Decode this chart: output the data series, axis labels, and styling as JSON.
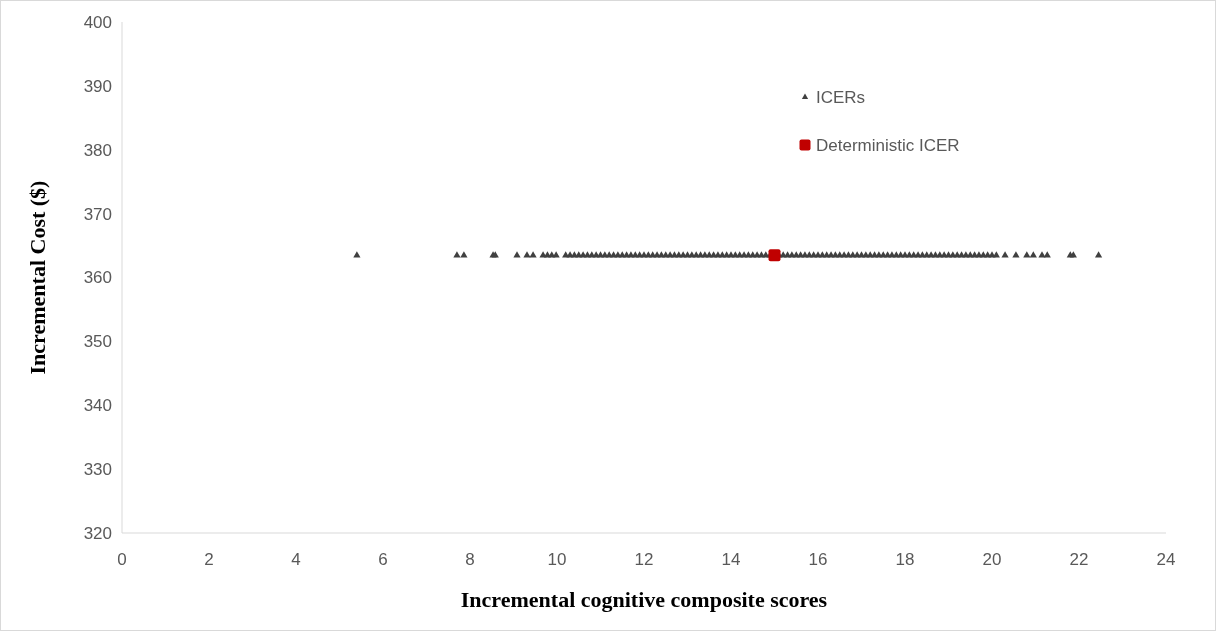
{
  "chart_data": {
    "type": "scatter",
    "xlabel": "Incremental cognitive composite scores",
    "ylabel": "Incremental Cost ($)",
    "xlim": [
      0,
      24
    ],
    "xticks": [
      0,
      2,
      4,
      6,
      8,
      10,
      12,
      14,
      16,
      18,
      20,
      22,
      24
    ],
    "ylim": [
      320,
      400
    ],
    "yticks": [
      320,
      330,
      340,
      350,
      360,
      370,
      380,
      390,
      400
    ],
    "legend": "top right",
    "grid": false,
    "series": [
      {
        "name": "ICERs",
        "color": "#404040",
        "marker": "triangle",
        "x": [
          5.4,
          7.7,
          7.86,
          8.53,
          8.58,
          9.08,
          9.31,
          9.45,
          9.68,
          9.78,
          9.88,
          9.98,
          10.2,
          10.3,
          10.4,
          10.5,
          10.6,
          10.7,
          10.8,
          10.9,
          11.0,
          11.1,
          11.2,
          11.3,
          11.4,
          11.5,
          11.6,
          11.7,
          11.8,
          11.9,
          12.0,
          12.1,
          12.2,
          12.3,
          12.4,
          12.5,
          12.6,
          12.7,
          12.8,
          12.9,
          13.0,
          13.1,
          13.2,
          13.3,
          13.4,
          13.5,
          13.6,
          13.7,
          13.8,
          13.9,
          14.0,
          14.1,
          14.2,
          14.3,
          14.4,
          14.5,
          14.6,
          14.7,
          14.8,
          14.9,
          15.1,
          15.2,
          15.3,
          15.4,
          15.5,
          15.6,
          15.7,
          15.8,
          15.9,
          16.0,
          16.1,
          16.2,
          16.3,
          16.4,
          16.5,
          16.6,
          16.7,
          16.8,
          16.9,
          17.0,
          17.1,
          17.2,
          17.3,
          17.4,
          17.5,
          17.6,
          17.7,
          17.8,
          17.9,
          18.0,
          18.1,
          18.2,
          18.3,
          18.4,
          18.5,
          18.6,
          18.7,
          18.8,
          18.9,
          19.0,
          19.1,
          19.2,
          19.3,
          19.4,
          19.5,
          19.6,
          19.7,
          19.8,
          19.9,
          20.0,
          20.1,
          20.3,
          20.55,
          20.8,
          20.95,
          21.15,
          21.27,
          21.8,
          21.87,
          22.45
        ],
        "values": [
          363.5,
          363.5,
          363.5,
          363.5,
          363.5,
          363.5,
          363.5,
          363.5,
          363.5,
          363.5,
          363.5,
          363.5,
          363.5,
          363.5,
          363.5,
          363.5,
          363.5,
          363.5,
          363.5,
          363.5,
          363.5,
          363.5,
          363.5,
          363.5,
          363.5,
          363.5,
          363.5,
          363.5,
          363.5,
          363.5,
          363.5,
          363.5,
          363.5,
          363.5,
          363.5,
          363.5,
          363.5,
          363.5,
          363.5,
          363.5,
          363.5,
          363.5,
          363.5,
          363.5,
          363.5,
          363.5,
          363.5,
          363.5,
          363.5,
          363.5,
          363.5,
          363.5,
          363.5,
          363.5,
          363.5,
          363.5,
          363.5,
          363.5,
          363.5,
          363.5,
          363.5,
          363.5,
          363.5,
          363.5,
          363.5,
          363.5,
          363.5,
          363.5,
          363.5,
          363.5,
          363.5,
          363.5,
          363.5,
          363.5,
          363.5,
          363.5,
          363.5,
          363.5,
          363.5,
          363.5,
          363.5,
          363.5,
          363.5,
          363.5,
          363.5,
          363.5,
          363.5,
          363.5,
          363.5,
          363.5,
          363.5,
          363.5,
          363.5,
          363.5,
          363.5,
          363.5,
          363.5,
          363.5,
          363.5,
          363.5,
          363.5,
          363.5,
          363.5,
          363.5,
          363.5,
          363.5,
          363.5,
          363.5,
          363.5,
          363.5,
          363.5,
          363.5,
          363.5,
          363.5,
          363.5,
          363.5,
          363.5,
          363.5,
          363.5,
          363.5
        ]
      },
      {
        "name": "Deterministic ICER",
        "color": "#c00000",
        "marker": "square",
        "x": [
          15.0
        ],
        "values": [
          363.5
        ]
      }
    ]
  }
}
